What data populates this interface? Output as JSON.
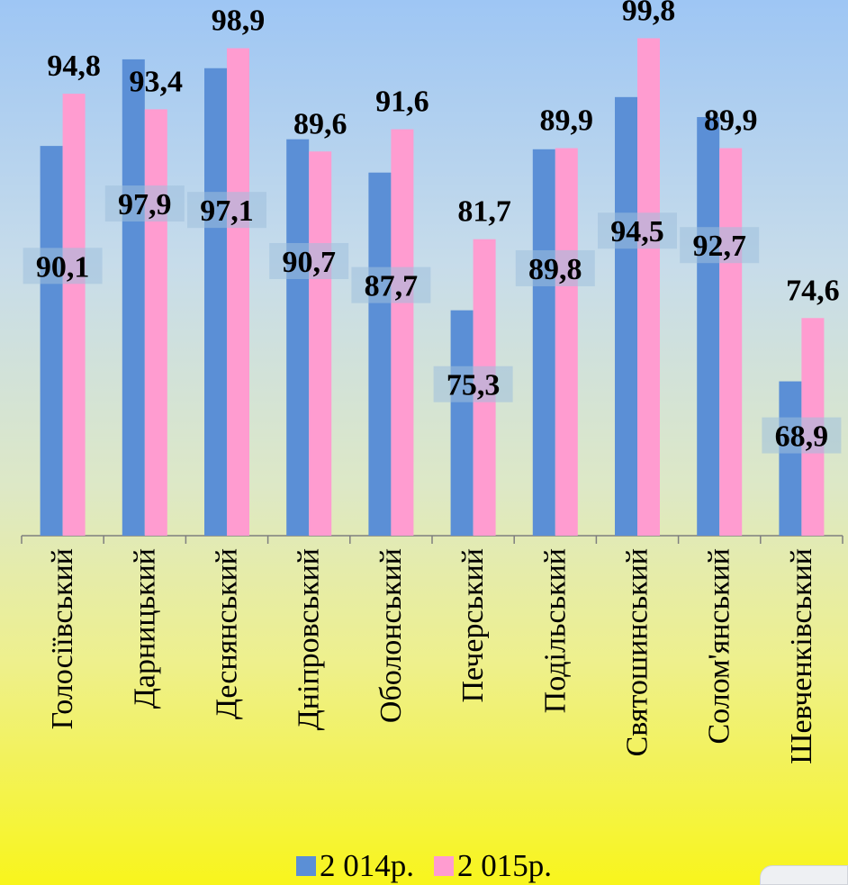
{
  "chart_data": {
    "type": "bar",
    "categories": [
      "Голосіївський",
      "Дарницький",
      "Деснянський",
      "Дніпровський",
      "Оболонський",
      "Печерський",
      "Подільський",
      "Святошинський",
      "Солом'янський",
      "Шевченківський"
    ],
    "series": [
      {
        "name": "2 014р.",
        "color": "#5b8fd6",
        "values": [
          90.1,
          97.9,
          97.1,
          90.7,
          87.7,
          75.3,
          89.8,
          94.5,
          92.7,
          68.9
        ],
        "labels": [
          "90,1",
          "97,9",
          "97,1",
          "90,7",
          "87,7",
          "75,3",
          "89,8",
          "94,5",
          "92,7",
          "68,9"
        ]
      },
      {
        "name": "2 015р.",
        "color": "#ff9cd0",
        "values": [
          94.8,
          93.4,
          98.9,
          89.6,
          91.6,
          81.7,
          89.9,
          99.8,
          89.9,
          74.6
        ],
        "labels": [
          "94,8",
          "93,4",
          "98,9",
          "89,6",
          "91,6",
          "81,7",
          "89,9",
          "99,8",
          "89,9",
          "74,6"
        ]
      }
    ],
    "ylim": [
      0,
      100
    ],
    "grid": false,
    "legend_position": "bottom"
  }
}
